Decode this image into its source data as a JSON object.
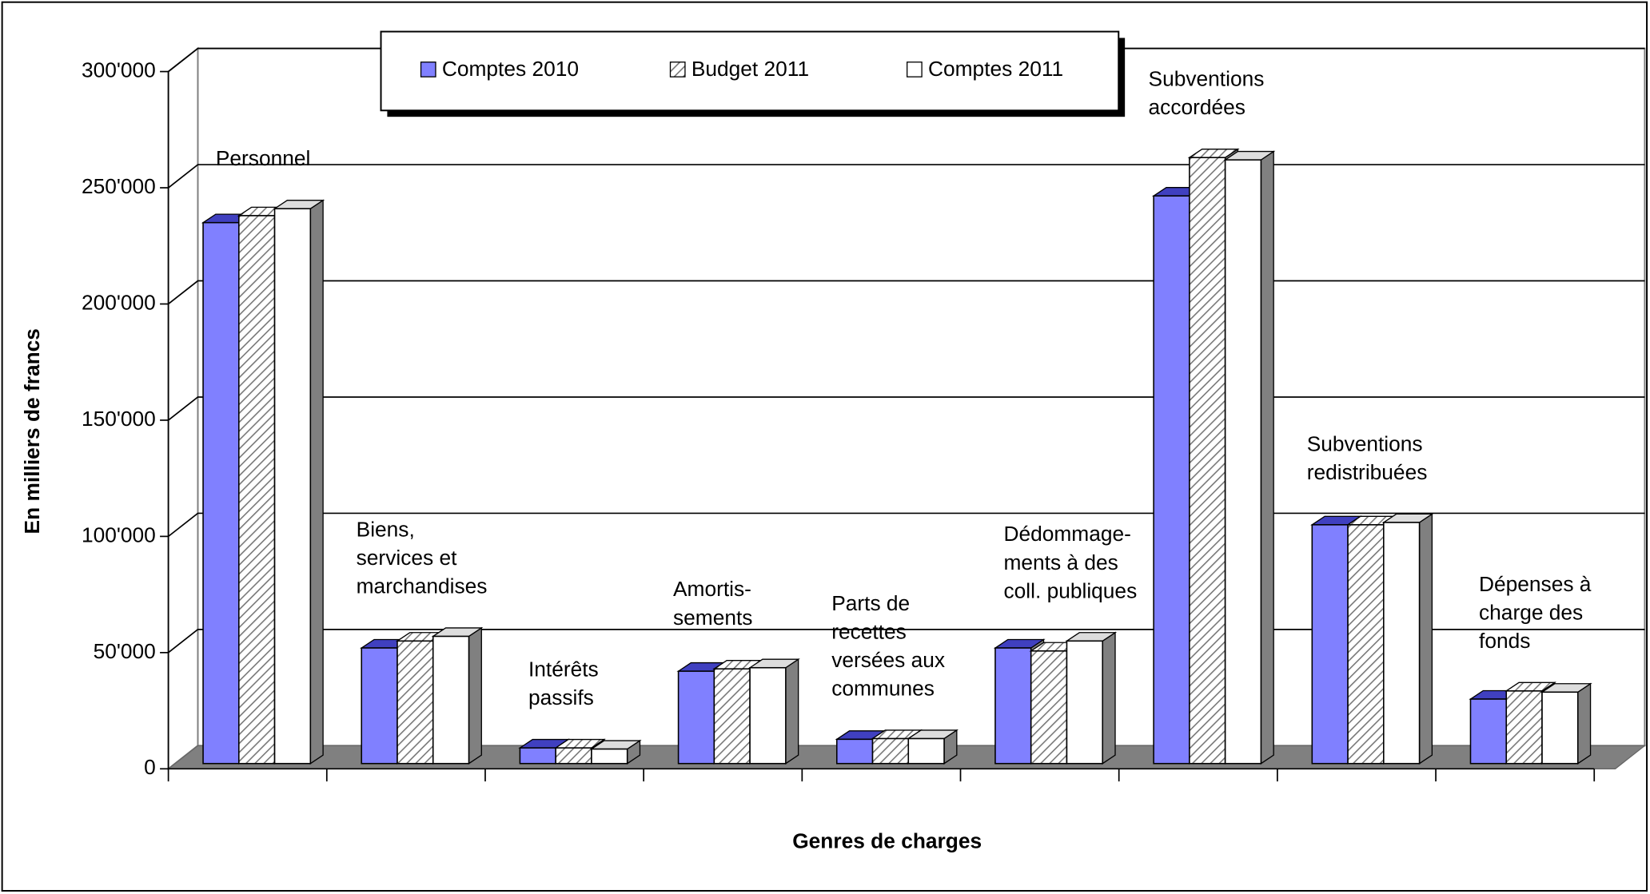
{
  "chart_data": {
    "type": "bar3d",
    "y_label": "En milliers de francs",
    "x_label": "Genres de charges",
    "categories": [
      "Personnel",
      "Biens,\nservices et\nmarchandises",
      "Intérêts\npassifs",
      "Amortis-\nsements",
      "Parts de\nrecettes\nversées aux\ncommunes",
      "Dédommage-\nments à des\ncoll. publiques",
      "Subventions\naccordées",
      "Subventions\nredistribuées",
      "Dépenses à\ncharge des\nfonds"
    ],
    "series": [
      {
        "name": "Comptes 2010",
        "color": "#8080ff",
        "values": [
          235000,
          52000,
          9000,
          42000,
          12700,
          52000,
          246500,
          105000,
          30000
        ]
      },
      {
        "name": "Budget 2011",
        "color": "hatch",
        "values": [
          238000,
          55000,
          9000,
          43000,
          13000,
          50700,
          263000,
          105000,
          33500
        ]
      },
      {
        "name": "Comptes 2011",
        "color": "#ffffff",
        "values": [
          241000,
          57000,
          8500,
          43500,
          13000,
          55000,
          262000,
          106000,
          33000
        ]
      }
    ],
    "ylim": [
      0,
      300000
    ],
    "yticks": [
      0,
      {
        "value": 50000,
        "label": "50'000"
      },
      {
        "value": 100000,
        "label": "100'000"
      },
      {
        "value": 150000,
        "label": "150'000"
      },
      {
        "value": 200000,
        "label": "200'000"
      },
      {
        "value": 250000,
        "label": "250'000"
      },
      {
        "value": 300000,
        "label": "300'000"
      }
    ],
    "grid": true,
    "legend": "top"
  }
}
